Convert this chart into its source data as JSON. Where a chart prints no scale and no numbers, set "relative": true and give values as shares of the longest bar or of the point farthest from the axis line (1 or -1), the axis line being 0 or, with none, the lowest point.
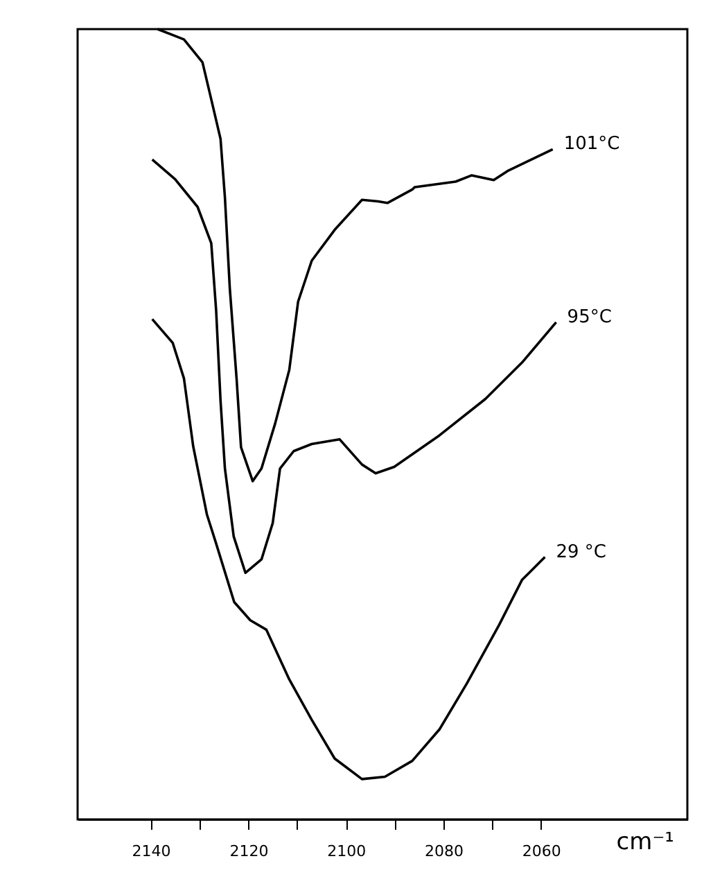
{
  "chart_data": {
    "type": "line",
    "xlabel": "cm⁻¹",
    "relative": true,
    "marker": "none",
    "line_style": "solid",
    "xlim": [
      2155,
      2030
    ],
    "xticks": [
      2140,
      {
        "value": 2130,
        "label": null
      },
      2120,
      {
        "value": 2110,
        "label": null
      },
      2100,
      {
        "value": 2090,
        "label": null
      },
      2080,
      {
        "value": 2070,
        "label": null
      },
      2060
    ],
    "series": [
      {
        "name": "101°C",
        "color": "#000000",
        "x": [
          2138.6,
          2133.2,
          2129.4,
          2127.6,
          2125.7,
          2124.8,
          2123.8,
          2122.4,
          2121.5,
          2119.1,
          2117.3,
          2114.5,
          2111.6,
          2109.8,
          2107.0,
          2102.3,
          2096.7,
          2093.4,
          2091.5,
          2086.4,
          2085.9,
          2077.5,
          2074.2,
          2069.7,
          2066.7,
          2061.6,
          2057.6
        ],
        "values": [
          1.0,
          0.987,
          0.958,
          0.911,
          0.861,
          0.787,
          0.672,
          0.557,
          0.471,
          0.428,
          0.444,
          0.501,
          0.569,
          0.655,
          0.707,
          0.746,
          0.784,
          0.782,
          0.78,
          0.797,
          0.8,
          0.807,
          0.815,
          0.809,
          0.821,
          0.836,
          0.848
        ]
      },
      {
        "name": "95°C",
        "color": "#000000",
        "x": [
          2139.7,
          2135.0,
          2130.4,
          2127.6,
          2126.6,
          2125.7,
          2124.8,
          2123.0,
          2120.6,
          2117.3,
          2115.0,
          2113.5,
          2110.7,
          2107.0,
          2101.3,
          2096.7,
          2093.9,
          2090.1,
          2080.8,
          2071.4,
          2063.9,
          2056.9
        ],
        "values": [
          0.835,
          0.81,
          0.775,
          0.729,
          0.644,
          0.53,
          0.444,
          0.358,
          0.312,
          0.329,
          0.375,
          0.444,
          0.466,
          0.475,
          0.481,
          0.449,
          0.438,
          0.446,
          0.486,
          0.532,
          0.578,
          0.629
        ]
      },
      {
        "name": "29 °C",
        "color": "#000000",
        "x": [
          2139.7,
          2135.5,
          2133.2,
          2131.3,
          2128.5,
          2126.6,
          2122.9,
          2119.6,
          2116.3,
          2111.6,
          2107.0,
          2102.3,
          2096.7,
          2092.0,
          2086.4,
          2080.8,
          2075.2,
          2068.6,
          2063.9,
          2059.2
        ],
        "values": [
          0.633,
          0.603,
          0.558,
          0.472,
          0.386,
          0.349,
          0.275,
          0.252,
          0.24,
          0.177,
          0.126,
          0.077,
          0.051,
          0.054,
          0.074,
          0.114,
          0.172,
          0.246,
          0.303,
          0.332
        ]
      }
    ]
  }
}
